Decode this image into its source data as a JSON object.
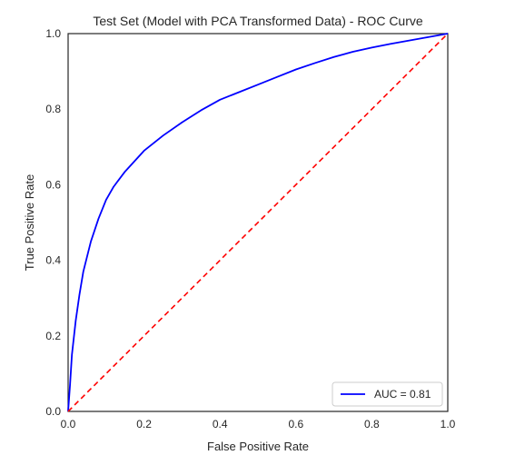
{
  "chart_data": {
    "type": "line",
    "title": "Test Set (Model with PCA Transformed Data) - ROC Curve",
    "xlabel": "False Positive Rate",
    "ylabel": "True Positive Rate",
    "xlim": [
      0.0,
      1.0
    ],
    "ylim": [
      0.0,
      1.0
    ],
    "xticks": [
      "0.0",
      "0.2",
      "0.4",
      "0.6",
      "0.8",
      "1.0"
    ],
    "yticks": [
      "0.0",
      "0.2",
      "0.4",
      "0.6",
      "0.8",
      "1.0"
    ],
    "grid": false,
    "legend_position": "lower right",
    "series": [
      {
        "name": "AUC = 0.81",
        "color": "#0000ff",
        "style": "solid",
        "x": [
          0.0,
          0.005,
          0.01,
          0.02,
          0.03,
          0.04,
          0.05,
          0.06,
          0.08,
          0.1,
          0.12,
          0.15,
          0.2,
          0.25,
          0.3,
          0.35,
          0.4,
          0.45,
          0.5,
          0.55,
          0.6,
          0.65,
          0.7,
          0.75,
          0.8,
          0.85,
          0.9,
          0.95,
          1.0
        ],
        "y": [
          0.0,
          0.07,
          0.15,
          0.24,
          0.31,
          0.37,
          0.41,
          0.45,
          0.51,
          0.56,
          0.595,
          0.635,
          0.69,
          0.73,
          0.765,
          0.797,
          0.825,
          0.845,
          0.865,
          0.885,
          0.905,
          0.922,
          0.938,
          0.952,
          0.963,
          0.973,
          0.982,
          0.991,
          1.0
        ]
      },
      {
        "name": "",
        "color": "#ff0000",
        "style": "dashed",
        "x": [
          0.0,
          1.0
        ],
        "y": [
          0.0,
          1.0
        ]
      }
    ]
  }
}
